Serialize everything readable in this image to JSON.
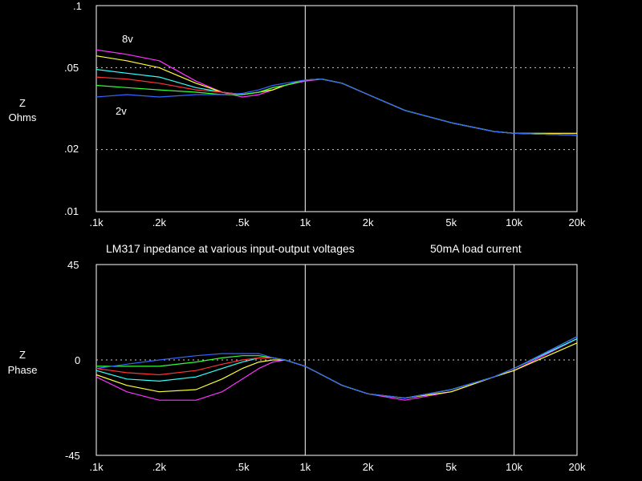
{
  "title": "LM317 inpedance at various input-output voltages",
  "subtitle": "50mA load current",
  "chart_data": [
    {
      "type": "line",
      "ylabel_line1": "Z",
      "ylabel_line2": "Ohms",
      "yscale": "log",
      "xscale": "log",
      "xlim": [
        100,
        20000
      ],
      "ylim": [
        0.01,
        0.1
      ],
      "x_ticks": [
        ".1k",
        ".2k",
        ".5k",
        "1k",
        "2k",
        "5k",
        "10k",
        "20k"
      ],
      "y_ticks": [
        ".1",
        ".05",
        ".02",
        ".01"
      ],
      "annotations": [
        "8v",
        "2v"
      ],
      "x": [
        100,
        140,
        200,
        300,
        400,
        500,
        600,
        700,
        800,
        1000,
        1200,
        1500,
        2000,
        3000,
        5000,
        8000,
        10000,
        20000
      ],
      "series": [
        {
          "color": "#ff33ff",
          "values": [
            0.061,
            0.058,
            0.054,
            0.043,
            0.038,
            0.036,
            0.037,
            0.039,
            0.041,
            0.043,
            0.044,
            0.042,
            0.037,
            0.031,
            0.027,
            0.0245,
            0.024,
            0.024
          ]
        },
        {
          "color": "#ffff33",
          "values": [
            0.057,
            0.054,
            0.05,
            0.042,
            0.038,
            0.037,
            0.038,
            0.039,
            0.041,
            0.0435,
            0.044,
            0.042,
            0.037,
            0.031,
            0.027,
            0.0245,
            0.024,
            0.024
          ]
        },
        {
          "color": "#33ffff",
          "values": [
            0.049,
            0.047,
            0.045,
            0.04,
            0.038,
            0.037,
            0.038,
            0.04,
            0.041,
            0.0435,
            0.044,
            0.042,
            0.037,
            0.031,
            0.027,
            0.0245,
            0.024,
            0.0235
          ]
        },
        {
          "color": "#ff3333",
          "values": [
            0.045,
            0.044,
            0.042,
            0.039,
            0.038,
            0.037,
            0.038,
            0.04,
            0.041,
            0.0435,
            0.044,
            0.042,
            0.037,
            0.031,
            0.027,
            0.0245,
            0.024,
            0.0235
          ]
        },
        {
          "color": "#33ff33",
          "values": [
            0.041,
            0.04,
            0.039,
            0.038,
            0.037,
            0.037,
            0.038,
            0.04,
            0.041,
            0.0435,
            0.044,
            0.042,
            0.037,
            0.031,
            0.027,
            0.0245,
            0.024,
            0.0235
          ]
        },
        {
          "color": "#3366ff",
          "values": [
            0.036,
            0.037,
            0.036,
            0.037,
            0.037,
            0.0375,
            0.039,
            0.041,
            0.042,
            0.0435,
            0.044,
            0.042,
            0.037,
            0.031,
            0.027,
            0.0245,
            0.024,
            0.0235
          ]
        }
      ]
    },
    {
      "type": "line",
      "ylabel_line1": "Z",
      "ylabel_line2": "Phase",
      "xscale": "log",
      "xlim": [
        100,
        20000
      ],
      "ylim": [
        -45,
        45
      ],
      "x_ticks": [
        ".1k",
        ".2k",
        ".5k",
        "1k",
        "2k",
        "5k",
        "10k",
        "20k"
      ],
      "y_ticks": [
        "45",
        "0",
        "-45"
      ],
      "x": [
        100,
        140,
        200,
        300,
        400,
        500,
        600,
        700,
        800,
        1000,
        1200,
        1500,
        2000,
        3000,
        5000,
        8000,
        10000,
        20000
      ],
      "series": [
        {
          "color": "#ff33ff",
          "values": [
            -8,
            -15,
            -19,
            -19,
            -15,
            -9,
            -4,
            -1,
            0,
            -3,
            -7,
            -12,
            -16,
            -19,
            -15,
            -8,
            -5,
            10
          ]
        },
        {
          "color": "#ffff33",
          "values": [
            -7,
            -12,
            -15,
            -14,
            -9,
            -4,
            -1,
            0,
            0,
            -3,
            -7,
            -12,
            -16,
            -18,
            -15,
            -8,
            -5,
            8
          ]
        },
        {
          "color": "#33ffff",
          "values": [
            -5,
            -9,
            -10,
            -8,
            -4,
            -1,
            1,
            1,
            0,
            -3,
            -7,
            -12,
            -16,
            -18,
            -14,
            -8,
            -4,
            10
          ]
        },
        {
          "color": "#ff3333",
          "values": [
            -4,
            -6,
            -7,
            -5,
            -2,
            0,
            1,
            1,
            0,
            -3,
            -7,
            -12,
            -16,
            -18,
            -14,
            -8,
            -4,
            11
          ]
        },
        {
          "color": "#33ff33",
          "values": [
            -3,
            -3,
            -3,
            -1,
            1,
            2,
            2,
            1,
            0,
            -3,
            -7,
            -12,
            -16,
            -18,
            -14,
            -8,
            -4,
            11
          ]
        },
        {
          "color": "#3366ff",
          "values": [
            -4,
            -2,
            0,
            2,
            3,
            3,
            3,
            1,
            0,
            -3,
            -7,
            -12,
            -16,
            -18,
            -14,
            -8,
            -4,
            11
          ]
        }
      ]
    }
  ]
}
